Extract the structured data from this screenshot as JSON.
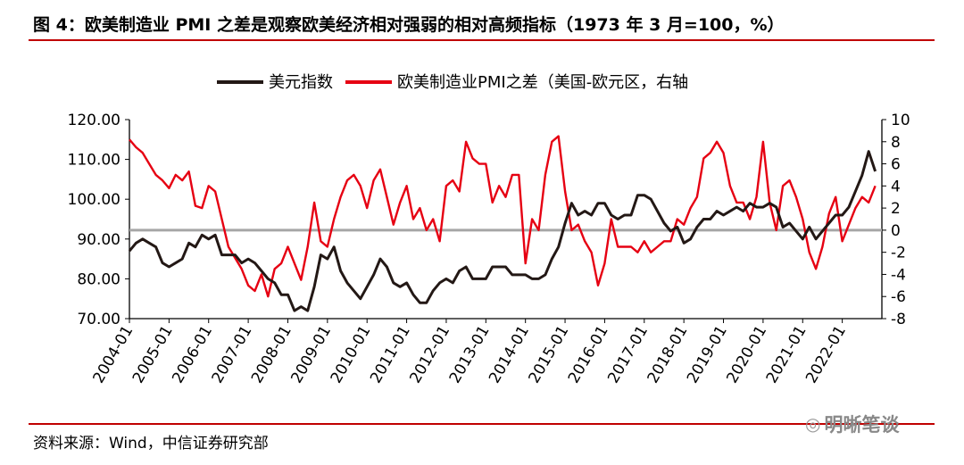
{
  "header": {
    "title": "图 4：欧美制造业 PMI 之差是观察欧美经济相对强弱的相对高频指标（1973 年 3 月=100，%）"
  },
  "footer": {
    "source": "资料来源：Wind，中信证券研究部",
    "watermark": "明晰笔谈",
    "watermark_icon": "wechat-icon"
  },
  "colors": {
    "series_dollar": "#231815",
    "series_pmi": "#e60012",
    "zero_line": "#a6a6a6",
    "rule": "#c00000"
  },
  "chart_data": {
    "type": "line",
    "legend_position": "top-center",
    "grid": false,
    "series": [
      {
        "name": "美元指数",
        "axis": "left",
        "points": [
          [
            "2004-01",
            87
          ],
          [
            "2004-03",
            89
          ],
          [
            "2004-05",
            90
          ],
          [
            "2004-07",
            89
          ],
          [
            "2004-09",
            88
          ],
          [
            "2004-11",
            84
          ],
          [
            "2005-01",
            83
          ],
          [
            "2005-03",
            84
          ],
          [
            "2005-05",
            85
          ],
          [
            "2005-07",
            89
          ],
          [
            "2005-09",
            88
          ],
          [
            "2005-11",
            91
          ],
          [
            "2006-01",
            90
          ],
          [
            "2006-03",
            91
          ],
          [
            "2006-05",
            86
          ],
          [
            "2006-07",
            86
          ],
          [
            "2006-09",
            86
          ],
          [
            "2006-11",
            84
          ],
          [
            "2007-01",
            85
          ],
          [
            "2007-03",
            84
          ],
          [
            "2007-05",
            82
          ],
          [
            "2007-07",
            80
          ],
          [
            "2007-09",
            79
          ],
          [
            "2007-11",
            76
          ],
          [
            "2008-01",
            76
          ],
          [
            "2008-03",
            72
          ],
          [
            "2008-05",
            73
          ],
          [
            "2008-07",
            72
          ],
          [
            "2008-09",
            78
          ],
          [
            "2008-11",
            86
          ],
          [
            "2009-01",
            85
          ],
          [
            "2009-03",
            88
          ],
          [
            "2009-05",
            82
          ],
          [
            "2009-07",
            79
          ],
          [
            "2009-09",
            77
          ],
          [
            "2009-11",
            75
          ],
          [
            "2010-01",
            78
          ],
          [
            "2010-03",
            81
          ],
          [
            "2010-05",
            85
          ],
          [
            "2010-07",
            83
          ],
          [
            "2010-09",
            79
          ],
          [
            "2010-11",
            78
          ],
          [
            "2011-01",
            79
          ],
          [
            "2011-03",
            76
          ],
          [
            "2011-05",
            74
          ],
          [
            "2011-07",
            74
          ],
          [
            "2011-09",
            77
          ],
          [
            "2011-11",
            79
          ],
          [
            "2012-01",
            80
          ],
          [
            "2012-03",
            79
          ],
          [
            "2012-05",
            82
          ],
          [
            "2012-07",
            83
          ],
          [
            "2012-09",
            80
          ],
          [
            "2012-11",
            80
          ],
          [
            "2013-01",
            80
          ],
          [
            "2013-03",
            83
          ],
          [
            "2013-05",
            83
          ],
          [
            "2013-07",
            83
          ],
          [
            "2013-09",
            81
          ],
          [
            "2013-11",
            81
          ],
          [
            "2014-01",
            81
          ],
          [
            "2014-03",
            80
          ],
          [
            "2014-05",
            80
          ],
          [
            "2014-07",
            81
          ],
          [
            "2014-09",
            85
          ],
          [
            "2014-11",
            88
          ],
          [
            "2015-01",
            94
          ],
          [
            "2015-03",
            99
          ],
          [
            "2015-05",
            96
          ],
          [
            "2015-07",
            97
          ],
          [
            "2015-09",
            96
          ],
          [
            "2015-11",
            99
          ],
          [
            "2016-01",
            99
          ],
          [
            "2016-03",
            96
          ],
          [
            "2016-05",
            95
          ],
          [
            "2016-07",
            96
          ],
          [
            "2016-09",
            96
          ],
          [
            "2016-11",
            101
          ],
          [
            "2017-01",
            101
          ],
          [
            "2017-03",
            100
          ],
          [
            "2017-05",
            97
          ],
          [
            "2017-07",
            94
          ],
          [
            "2017-09",
            92
          ],
          [
            "2017-11",
            93
          ],
          [
            "2018-01",
            89
          ],
          [
            "2018-03",
            90
          ],
          [
            "2018-05",
            93
          ],
          [
            "2018-07",
            95
          ],
          [
            "2018-09",
            95
          ],
          [
            "2018-11",
            97
          ],
          [
            "2019-01",
            96
          ],
          [
            "2019-03",
            97
          ],
          [
            "2019-05",
            98
          ],
          [
            "2019-07",
            97
          ],
          [
            "2019-09",
            99
          ],
          [
            "2019-11",
            98
          ],
          [
            "2020-01",
            98
          ],
          [
            "2020-03",
            99
          ],
          [
            "2020-05",
            98
          ],
          [
            "2020-07",
            93
          ],
          [
            "2020-09",
            94
          ],
          [
            "2020-11",
            92
          ],
          [
            "2021-01",
            90
          ],
          [
            "2021-03",
            93
          ],
          [
            "2021-05",
            90
          ],
          [
            "2021-07",
            92
          ],
          [
            "2021-09",
            94
          ],
          [
            "2021-11",
            96
          ],
          [
            "2022-01",
            96
          ],
          [
            "2022-03",
            98
          ],
          [
            "2022-05",
            102
          ],
          [
            "2022-07",
            106
          ],
          [
            "2022-09",
            112
          ],
          [
            "2022-11",
            107
          ]
        ]
      },
      {
        "name": "欧美制造业PMI之差（美国-欧元区，右轴",
        "axis": "right",
        "points": [
          [
            "2004-01",
            8.2
          ],
          [
            "2004-03",
            7.5
          ],
          [
            "2004-05",
            7.0
          ],
          [
            "2004-07",
            6.0
          ],
          [
            "2004-09",
            5.0
          ],
          [
            "2004-11",
            4.5
          ],
          [
            "2005-01",
            3.8
          ],
          [
            "2005-03",
            5.0
          ],
          [
            "2005-05",
            4.5
          ],
          [
            "2005-07",
            5.3
          ],
          [
            "2005-09",
            2.2
          ],
          [
            "2005-11",
            2.0
          ],
          [
            "2006-01",
            4.0
          ],
          [
            "2006-03",
            3.5
          ],
          [
            "2006-05",
            1.0
          ],
          [
            "2006-07",
            -1.5
          ],
          [
            "2006-09",
            -2.5
          ],
          [
            "2006-11",
            -3.5
          ],
          [
            "2007-01",
            -5.0
          ],
          [
            "2007-03",
            -5.5
          ],
          [
            "2007-05",
            -4.0
          ],
          [
            "2007-07",
            -6.0
          ],
          [
            "2007-09",
            -3.5
          ],
          [
            "2007-11",
            -3.0
          ],
          [
            "2008-01",
            -1.5
          ],
          [
            "2008-03",
            -3.0
          ],
          [
            "2008-05",
            -4.5
          ],
          [
            "2008-07",
            -1.5
          ],
          [
            "2008-09",
            2.5
          ],
          [
            "2008-11",
            -1.0
          ],
          [
            "2009-01",
            -1.5
          ],
          [
            "2009-03",
            1.0
          ],
          [
            "2009-05",
            3.0
          ],
          [
            "2009-07",
            4.5
          ],
          [
            "2009-09",
            5.0
          ],
          [
            "2009-11",
            4.0
          ],
          [
            "2010-01",
            2.0
          ],
          [
            "2010-03",
            4.5
          ],
          [
            "2010-05",
            5.5
          ],
          [
            "2010-07",
            3.0
          ],
          [
            "2010-09",
            0.5
          ],
          [
            "2010-11",
            2.5
          ],
          [
            "2011-01",
            4.0
          ],
          [
            "2011-03",
            1.0
          ],
          [
            "2011-05",
            2.0
          ],
          [
            "2011-07",
            0.0
          ],
          [
            "2011-09",
            1.0
          ],
          [
            "2011-11",
            -1.0
          ],
          [
            "2012-01",
            4.0
          ],
          [
            "2012-03",
            4.5
          ],
          [
            "2012-05",
            3.5
          ],
          [
            "2012-07",
            8.0
          ],
          [
            "2012-09",
            6.5
          ],
          [
            "2012-11",
            6.0
          ],
          [
            "2013-01",
            6.0
          ],
          [
            "2013-03",
            2.5
          ],
          [
            "2013-05",
            4.0
          ],
          [
            "2013-07",
            3.0
          ],
          [
            "2013-09",
            5.0
          ],
          [
            "2013-11",
            5.0
          ],
          [
            "2014-01",
            -3.0
          ],
          [
            "2014-03",
            1.0
          ],
          [
            "2014-05",
            0.0
          ],
          [
            "2014-07",
            5.0
          ],
          [
            "2014-09",
            8.0
          ],
          [
            "2014-11",
            8.5
          ],
          [
            "2015-01",
            3.5
          ],
          [
            "2015-03",
            0.0
          ],
          [
            "2015-05",
            0.5
          ],
          [
            "2015-07",
            -1.0
          ],
          [
            "2015-09",
            -2.0
          ],
          [
            "2015-11",
            -5.0
          ],
          [
            "2016-01",
            -3.0
          ],
          [
            "2016-03",
            1.0
          ],
          [
            "2016-05",
            -1.5
          ],
          [
            "2016-07",
            -1.5
          ],
          [
            "2016-09",
            -1.5
          ],
          [
            "2016-11",
            -2.0
          ],
          [
            "2017-01",
            -1.0
          ],
          [
            "2017-03",
            -2.0
          ],
          [
            "2017-05",
            -1.5
          ],
          [
            "2017-07",
            -1.0
          ],
          [
            "2017-09",
            -1.0
          ],
          [
            "2017-11",
            1.0
          ],
          [
            "2018-01",
            0.5
          ],
          [
            "2018-03",
            2.0
          ],
          [
            "2018-05",
            3.0
          ],
          [
            "2018-07",
            6.5
          ],
          [
            "2018-09",
            7.0
          ],
          [
            "2018-11",
            8.0
          ],
          [
            "2019-01",
            7.0
          ],
          [
            "2019-03",
            4.0
          ],
          [
            "2019-05",
            2.5
          ],
          [
            "2019-07",
            2.5
          ],
          [
            "2019-09",
            1.0
          ],
          [
            "2019-11",
            3.0
          ],
          [
            "2020-01",
            8.0
          ],
          [
            "2020-03",
            2.5
          ],
          [
            "2020-05",
            0.0
          ],
          [
            "2020-07",
            4.0
          ],
          [
            "2020-09",
            4.5
          ],
          [
            "2020-11",
            3.0
          ],
          [
            "2021-01",
            1.0
          ],
          [
            "2021-03",
            -2.0
          ],
          [
            "2021-05",
            -3.5
          ],
          [
            "2021-07",
            -1.5
          ],
          [
            "2021-09",
            1.5
          ],
          [
            "2021-11",
            3.0
          ],
          [
            "2022-01",
            -1.0
          ],
          [
            "2022-03",
            0.5
          ],
          [
            "2022-05",
            2.0
          ],
          [
            "2022-07",
            3.0
          ],
          [
            "2022-09",
            2.5
          ],
          [
            "2022-11",
            4.0
          ]
        ]
      }
    ],
    "x_categories": [
      "2004-01",
      "2005-01",
      "2006-01",
      "2007-01",
      "2008-01",
      "2009-01",
      "2010-01",
      "2011-01",
      "2012-01",
      "2013-01",
      "2014-01",
      "2015-01",
      "2016-01",
      "2017-01",
      "2018-01",
      "2019-01",
      "2020-01",
      "2021-01",
      "2022-01"
    ],
    "x_range": [
      "2004-01",
      "2022-12"
    ],
    "y_left": {
      "ticks": [
        "70.00",
        "80.00",
        "90.00",
        "100.00",
        "110.00",
        "120.00"
      ],
      "range": [
        70,
        120
      ]
    },
    "y_right": {
      "ticks": [
        "-8",
        "-6",
        "-4",
        "-2",
        "0",
        "2",
        "4",
        "6",
        "8",
        "10"
      ],
      "range": [
        -8,
        10
      ]
    },
    "reference_line": {
      "axis": "right",
      "value": 0
    }
  }
}
